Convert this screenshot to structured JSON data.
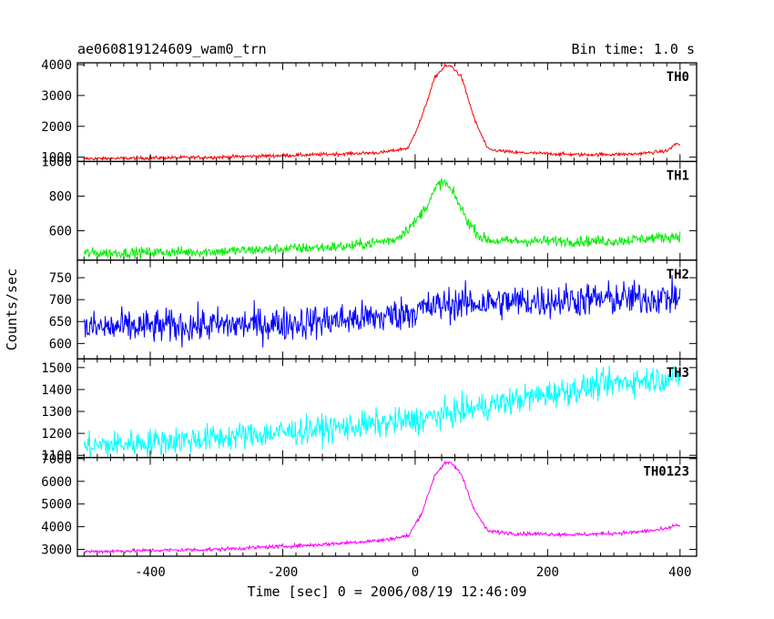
{
  "header": {
    "title": "ae060819124609_wam0_trn",
    "bin_time": "Bin time: 1.0 s"
  },
  "axes": {
    "xlabel": "Time [sec] 0 = 2006/08/19 12:46:09",
    "ylabel": "Counts/sec"
  },
  "chart_data": {
    "type": "line",
    "x_range": [
      -510,
      425
    ],
    "x_ticks": [
      -400,
      -200,
      0,
      200,
      400
    ],
    "panels": [
      {
        "name": "TH0",
        "color": "#ff0000",
        "ylim": [
          860,
          4060
        ],
        "y_ticks": [
          1000,
          2000,
          3000,
          4000
        ],
        "noise": 40,
        "x": [
          -500,
          -300,
          -150,
          -50,
          -10,
          10,
          30,
          45,
          55,
          70,
          90,
          110,
          150,
          250,
          330,
          380,
          395,
          400
        ],
        "y": [
          950,
          1000,
          1080,
          1150,
          1300,
          2300,
          3600,
          3950,
          3950,
          3600,
          2200,
          1250,
          1150,
          1080,
          1100,
          1200,
          1450,
          1400
        ]
      },
      {
        "name": "TH1",
        "color": "#00ee00",
        "ylim": [
          430,
          1000
        ],
        "y_ticks": [
          600,
          800,
          1000
        ],
        "noise": 22,
        "x": [
          -500,
          -300,
          -100,
          -30,
          0,
          20,
          35,
          45,
          60,
          80,
          100,
          120,
          200,
          300,
          400
        ],
        "y": [
          470,
          480,
          510,
          550,
          650,
          760,
          870,
          880,
          800,
          650,
          560,
          540,
          540,
          540,
          570
        ],
        "tick_labels": [
          "600",
          "800",
          "1000"
        ]
      },
      {
        "name": "TH2",
        "color": "#0000ff",
        "ylim": [
          565,
          790
        ],
        "y_ticks": [
          600,
          650,
          700,
          750
        ],
        "noise": 28,
        "x": [
          -500,
          -200,
          -50,
          0,
          50,
          150,
          250,
          400
        ],
        "y": [
          635,
          645,
          660,
          675,
          690,
          695,
          700,
          705
        ]
      },
      {
        "name": "TH3",
        "color": "#00ffff",
        "ylim": [
          1090,
          1540
        ],
        "y_ticks": [
          1100,
          1200,
          1300,
          1400,
          1500
        ],
        "noise": 45,
        "x": [
          -500,
          -300,
          -100,
          0,
          100,
          200,
          300,
          400
        ],
        "y": [
          1140,
          1180,
          1230,
          1260,
          1320,
          1380,
          1430,
          1460
        ]
      },
      {
        "name": "TH0123",
        "color": "#ff00ff",
        "ylim": [
          2700,
          7050
        ],
        "y_ticks": [
          3000,
          4000,
          5000,
          6000,
          7000
        ],
        "noise": 60,
        "x": [
          -500,
          -300,
          -150,
          -50,
          -10,
          10,
          30,
          45,
          55,
          70,
          90,
          110,
          150,
          250,
          330,
          380,
          395,
          400
        ],
        "y": [
          2900,
          3000,
          3200,
          3400,
          3600,
          4600,
          6300,
          6800,
          6800,
          6300,
          4700,
          3800,
          3700,
          3650,
          3750,
          3900,
          4100,
          4000
        ]
      }
    ]
  }
}
